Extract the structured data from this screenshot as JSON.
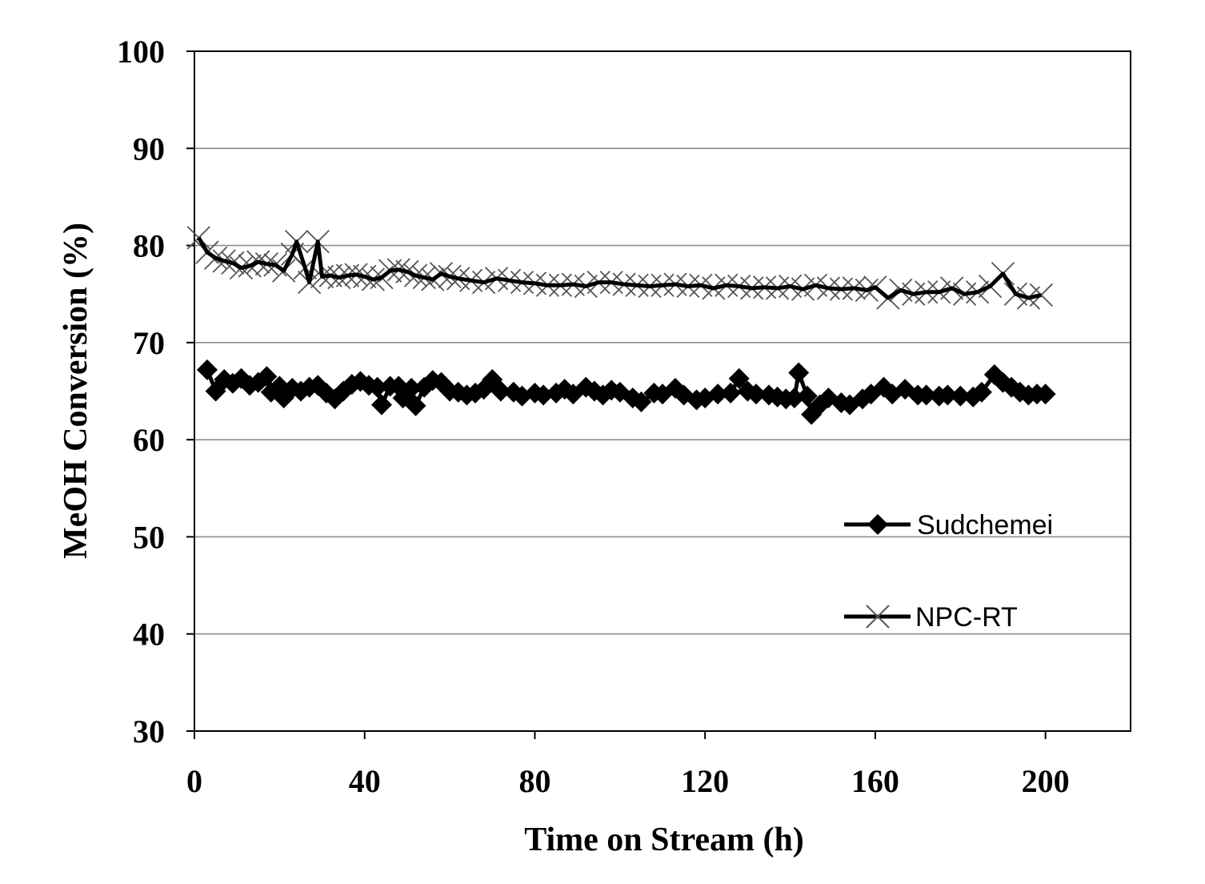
{
  "chart_data": {
    "type": "line",
    "title": "",
    "xlabel": "Time on Stream (h)",
    "ylabel": "MeOH Conversion (%)",
    "xlim": [
      0,
      220
    ],
    "ylim": [
      30,
      100
    ],
    "x_ticks": [
      0,
      40,
      80,
      120,
      160,
      200
    ],
    "y_ticks": [
      30,
      40,
      50,
      60,
      70,
      80,
      90,
      100
    ],
    "x_tick_labels": [
      "0",
      "40",
      "80",
      "120",
      "160",
      "200"
    ],
    "y_tick_labels": [
      "30",
      "40",
      "50",
      "60",
      "70",
      "80",
      "90",
      "100"
    ],
    "grid": "horizontal",
    "legend_position": "right",
    "series": [
      {
        "name": "Sudchemei",
        "marker": "diamond",
        "color": "#000000",
        "points": [
          [
            3,
            67.2
          ],
          [
            5,
            65.0
          ],
          [
            7,
            66.2
          ],
          [
            9,
            65.8
          ],
          [
            11,
            66.3
          ],
          [
            13,
            65.6
          ],
          [
            15,
            65.9
          ],
          [
            17,
            66.5
          ],
          [
            18,
            64.9
          ],
          [
            20,
            65.5
          ],
          [
            21,
            64.3
          ],
          [
            23,
            65.3
          ],
          [
            25,
            65.0
          ],
          [
            27,
            65.4
          ],
          [
            29,
            65.6
          ],
          [
            31,
            64.8
          ],
          [
            33,
            64.2
          ],
          [
            35,
            65.0
          ],
          [
            37,
            65.7
          ],
          [
            39,
            66.0
          ],
          [
            41,
            65.6
          ],
          [
            43,
            65.4
          ],
          [
            44,
            63.6
          ],
          [
            46,
            65.5
          ],
          [
            48,
            65.5
          ],
          [
            49,
            64.3
          ],
          [
            51,
            65.3
          ],
          [
            52,
            63.5
          ],
          [
            54,
            65.4
          ],
          [
            56,
            66.1
          ],
          [
            58,
            65.9
          ],
          [
            60,
            65.0
          ],
          [
            62,
            64.9
          ],
          [
            64,
            64.6
          ],
          [
            66,
            64.8
          ],
          [
            68,
            65.2
          ],
          [
            70,
            66.2
          ],
          [
            72,
            65.0
          ],
          [
            75,
            64.9
          ],
          [
            77,
            64.5
          ],
          [
            80,
            64.8
          ],
          [
            82,
            64.6
          ],
          [
            85,
            64.8
          ],
          [
            87,
            65.2
          ],
          [
            89,
            64.7
          ],
          [
            92,
            65.4
          ],
          [
            94,
            65.0
          ],
          [
            96,
            64.6
          ],
          [
            98,
            65.1
          ],
          [
            100,
            64.9
          ],
          [
            103,
            64.3
          ],
          [
            105,
            63.9
          ],
          [
            108,
            64.8
          ],
          [
            110,
            64.7
          ],
          [
            113,
            65.3
          ],
          [
            115,
            64.6
          ],
          [
            118,
            64.1
          ],
          [
            120,
            64.3
          ],
          [
            123,
            64.7
          ],
          [
            126,
            64.8
          ],
          [
            128,
            66.3
          ],
          [
            130,
            65.0
          ],
          [
            132,
            64.7
          ],
          [
            135,
            64.6
          ],
          [
            137,
            64.4
          ],
          [
            139,
            64.2
          ],
          [
            141,
            64.3
          ],
          [
            142,
            66.9
          ],
          [
            144,
            64.5
          ],
          [
            145,
            62.6
          ],
          [
            147,
            63.6
          ],
          [
            149,
            64.3
          ],
          [
            152,
            63.8
          ],
          [
            154,
            63.6
          ],
          [
            157,
            64.2
          ],
          [
            159,
            64.7
          ],
          [
            162,
            65.4
          ],
          [
            164,
            64.7
          ],
          [
            167,
            65.2
          ],
          [
            170,
            64.6
          ],
          [
            172,
            64.6
          ],
          [
            175,
            64.5
          ],
          [
            177,
            64.6
          ],
          [
            180,
            64.5
          ],
          [
            183,
            64.4
          ],
          [
            185,
            64.9
          ],
          [
            188,
            66.7
          ],
          [
            190,
            65.9
          ],
          [
            192,
            65.4
          ],
          [
            194,
            64.9
          ],
          [
            196,
            64.6
          ],
          [
            198,
            64.7
          ],
          [
            200,
            64.7
          ]
        ]
      },
      {
        "name": "NPC-RT",
        "marker": "x",
        "color": "#000000",
        "points": [
          [
            1,
            80.8
          ],
          [
            3,
            79.3
          ],
          [
            5,
            78.7
          ],
          [
            7,
            78.4
          ],
          [
            9,
            78.2
          ],
          [
            11,
            77.7
          ],
          [
            13,
            77.9
          ],
          [
            15,
            78.3
          ],
          [
            17,
            78.1
          ],
          [
            19,
            78.0
          ],
          [
            21,
            77.4
          ],
          [
            23,
            79.1
          ],
          [
            24,
            80.4
          ],
          [
            26,
            77.7
          ],
          [
            27,
            76.2
          ],
          [
            29,
            80.4
          ],
          [
            30,
            76.8
          ],
          [
            32,
            76.9
          ],
          [
            34,
            76.7
          ],
          [
            36,
            76.9
          ],
          [
            38,
            77.0
          ],
          [
            40,
            76.8
          ],
          [
            42,
            76.5
          ],
          [
            44,
            76.7
          ],
          [
            46,
            77.4
          ],
          [
            48,
            77.5
          ],
          [
            50,
            77.3
          ],
          [
            52,
            76.9
          ],
          [
            54,
            76.7
          ],
          [
            56,
            76.5
          ],
          [
            58,
            77.1
          ],
          [
            60,
            76.8
          ],
          [
            62,
            76.6
          ],
          [
            65,
            76.4
          ],
          [
            68,
            76.2
          ],
          [
            71,
            76.6
          ],
          [
            74,
            76.4
          ],
          [
            77,
            76.2
          ],
          [
            80,
            76.1
          ],
          [
            83,
            75.9
          ],
          [
            86,
            75.9
          ],
          [
            89,
            76.0
          ],
          [
            92,
            75.8
          ],
          [
            95,
            76.2
          ],
          [
            98,
            76.2
          ],
          [
            101,
            76.0
          ],
          [
            104,
            75.9
          ],
          [
            107,
            75.8
          ],
          [
            110,
            75.9
          ],
          [
            113,
            76.0
          ],
          [
            116,
            75.8
          ],
          [
            119,
            75.9
          ],
          [
            122,
            75.6
          ],
          [
            125,
            75.9
          ],
          [
            128,
            75.8
          ],
          [
            131,
            75.6
          ],
          [
            134,
            75.7
          ],
          [
            137,
            75.6
          ],
          [
            140,
            75.8
          ],
          [
            143,
            75.5
          ],
          [
            146,
            75.9
          ],
          [
            149,
            75.6
          ],
          [
            152,
            75.5
          ],
          [
            155,
            75.6
          ],
          [
            158,
            75.4
          ],
          [
            160,
            75.7
          ],
          [
            163,
            74.6
          ],
          [
            166,
            75.4
          ],
          [
            169,
            75.0
          ],
          [
            172,
            75.2
          ],
          [
            175,
            75.2
          ],
          [
            178,
            75.6
          ],
          [
            181,
            75.0
          ],
          [
            184,
            75.2
          ],
          [
            187,
            75.8
          ],
          [
            190,
            77.1
          ],
          [
            193,
            75.0
          ],
          [
            196,
            74.6
          ],
          [
            199,
            74.9
          ]
        ]
      }
    ]
  }
}
